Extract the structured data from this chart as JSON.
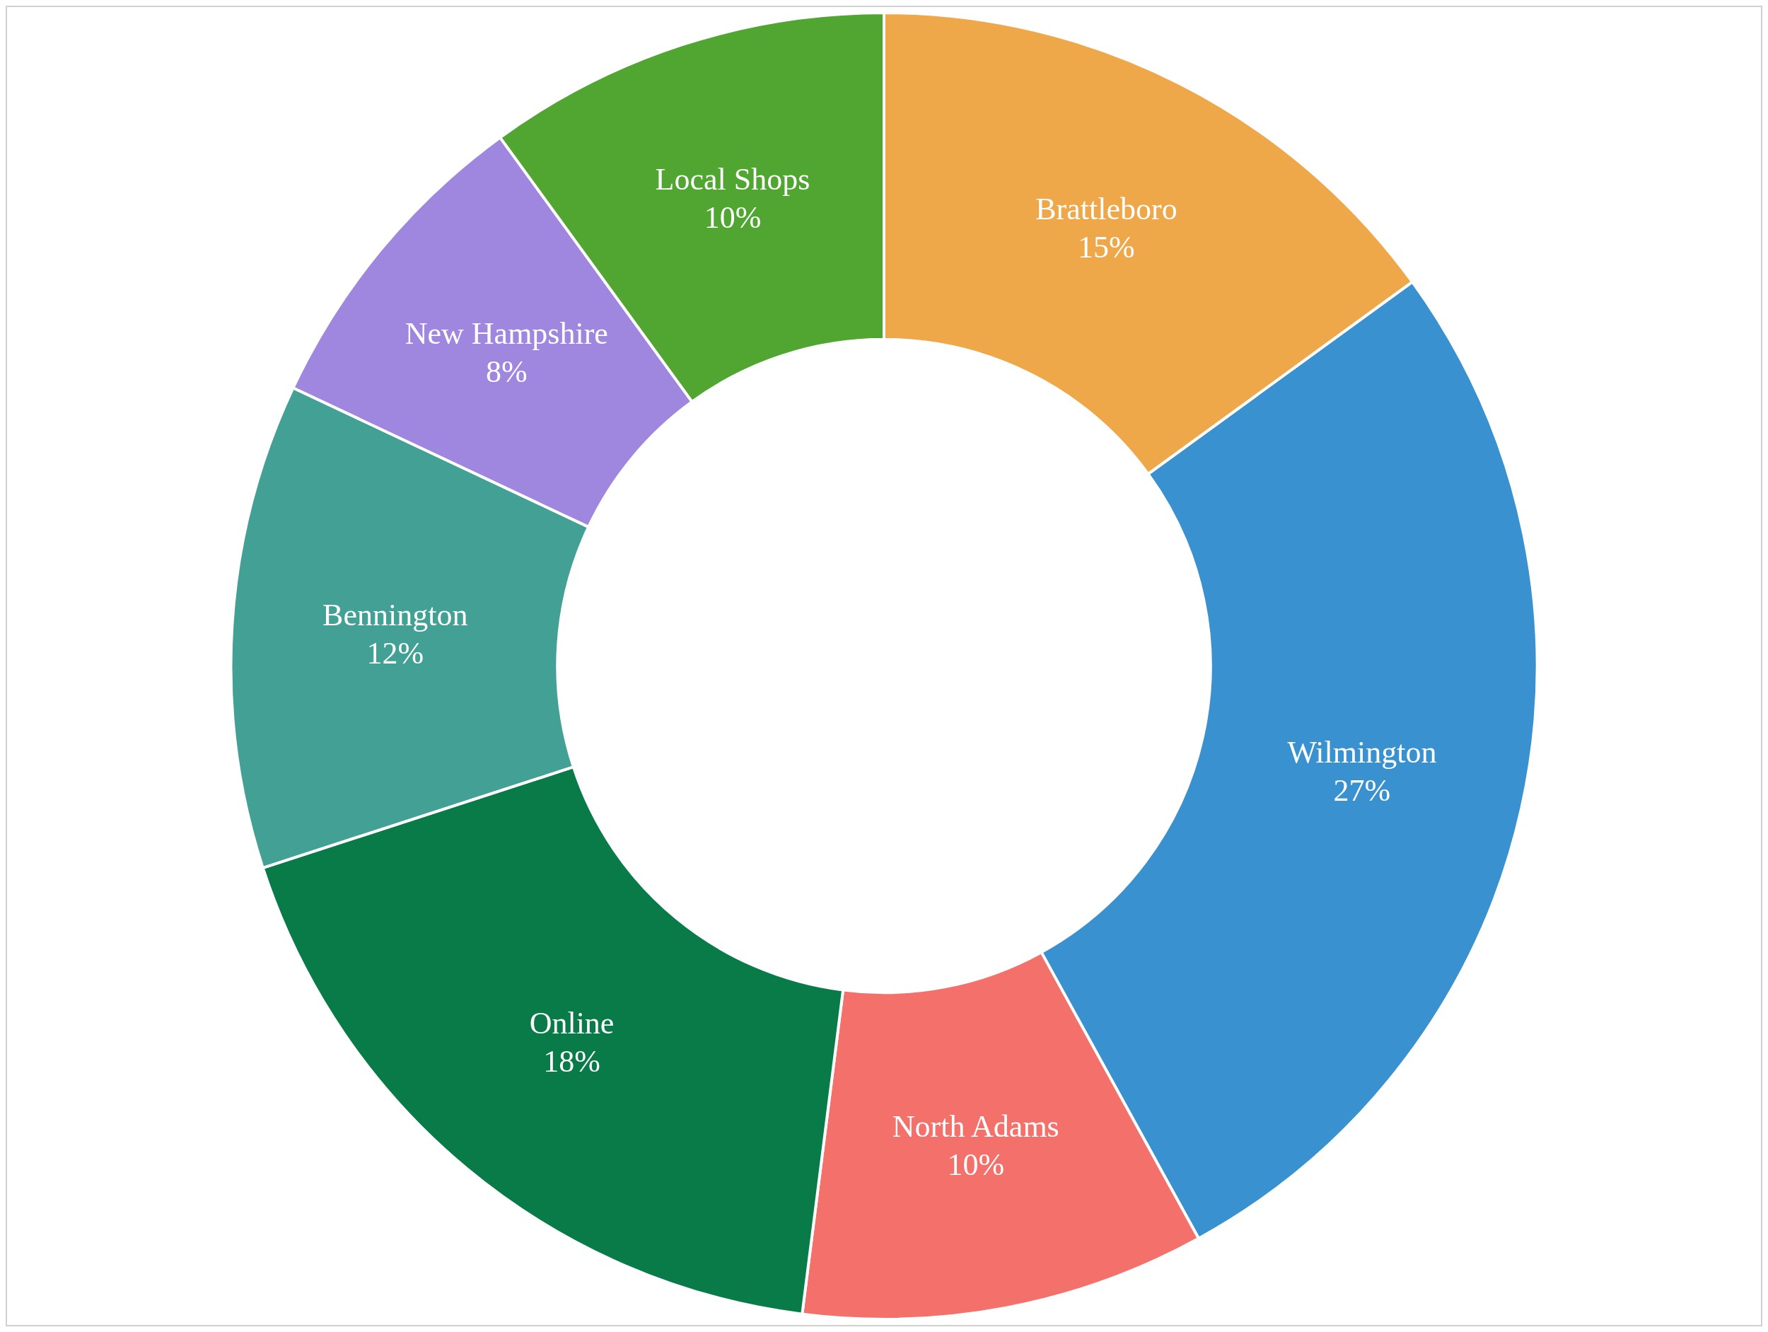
{
  "chart_data": {
    "type": "donut",
    "categories": [
      "Brattleboro",
      "Wilmington",
      "North Adams",
      "Online",
      "Bennington",
      "New Hampshire",
      "Local Shops"
    ],
    "values": [
      15,
      27,
      10,
      18,
      12,
      8,
      10
    ],
    "colors": [
      "#efa849",
      "#3a91d0",
      "#f3716a",
      "#087b48",
      "#43a095",
      "#9f86de",
      "#50a631"
    ],
    "value_labels": [
      "15%",
      "27%",
      "10%",
      "18%",
      "12%",
      "8%",
      "10%"
    ]
  }
}
